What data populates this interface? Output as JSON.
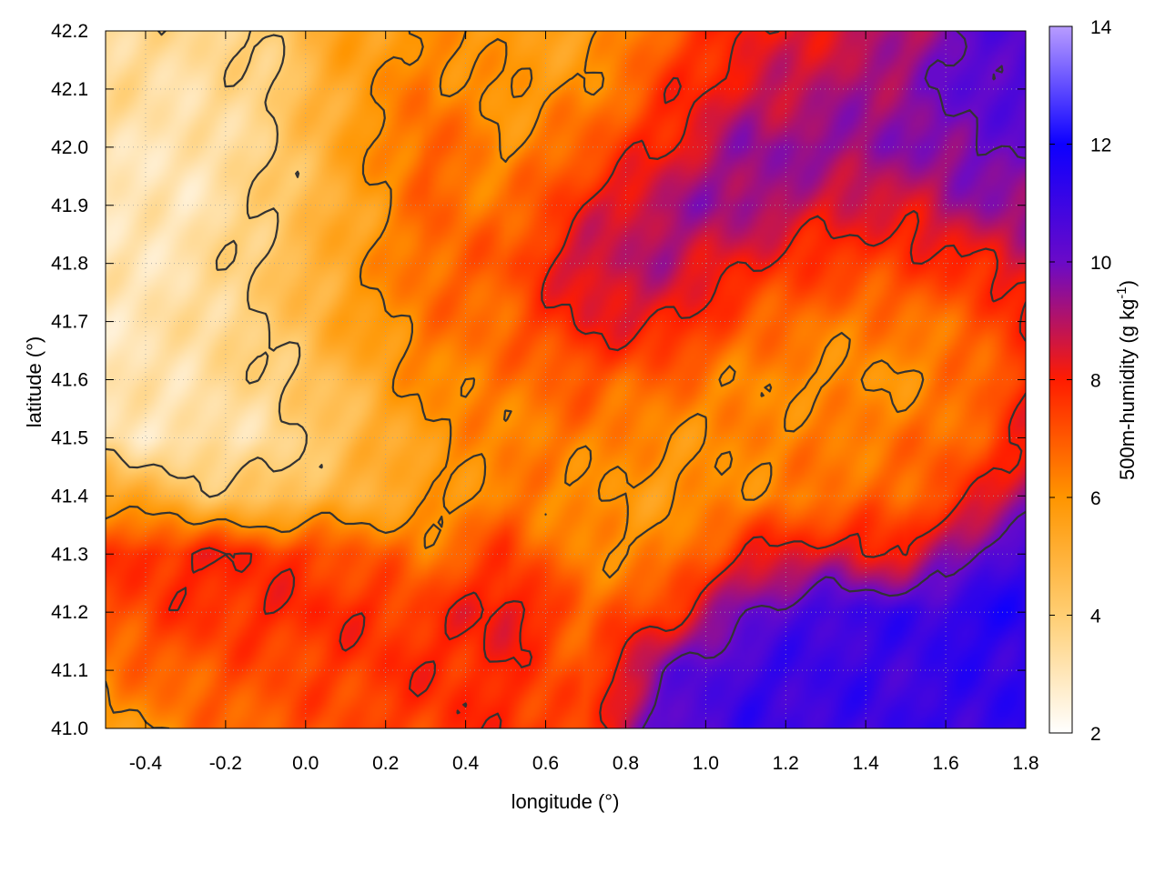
{
  "chart_data": {
    "type": "heatmap",
    "title": "",
    "xlabel": "longitude (°)",
    "ylabel": "latitude (°)",
    "colorbar_label_main": "500m-humidity (g kg",
    "colorbar_label_exp": "-1",
    "colorbar_label_close": ")",
    "xlim": [
      -0.5,
      1.8
    ],
    "ylim": [
      41.0,
      42.2
    ],
    "x_ticks": [
      "-0.4",
      "-0.2",
      "0.0",
      "0.2",
      "0.4",
      "0.6",
      "0.8",
      "1.0",
      "1.2",
      "1.4",
      "1.6",
      "1.8"
    ],
    "x_tick_values": [
      -0.4,
      -0.2,
      0.0,
      0.2,
      0.4,
      0.6,
      0.8,
      1.0,
      1.2,
      1.4,
      1.6,
      1.8
    ],
    "y_ticks": [
      "41.0",
      "41.1",
      "41.2",
      "41.3",
      "41.4",
      "41.5",
      "41.6",
      "41.7",
      "41.8",
      "41.9",
      "42.0",
      "42.1",
      "42.2"
    ],
    "y_tick_values": [
      41.0,
      41.1,
      41.2,
      41.3,
      41.4,
      41.5,
      41.6,
      41.7,
      41.8,
      41.9,
      42.0,
      42.1,
      42.2
    ],
    "colorbar_range": [
      2,
      14
    ],
    "colorbar_ticks": [
      "2",
      "4",
      "6",
      "8",
      "10",
      "12",
      "14"
    ],
    "colorbar_tick_values": [
      2,
      4,
      6,
      8,
      10,
      12,
      14
    ],
    "colorscale": [
      {
        "v": 2,
        "color": "#ffffff"
      },
      {
        "v": 4,
        "color": "#ffce73"
      },
      {
        "v": 6,
        "color": "#ff9500"
      },
      {
        "v": 8,
        "color": "#ff1c00"
      },
      {
        "v": 10,
        "color": "#6a0ac8"
      },
      {
        "v": 12,
        "color": "#0d00ff"
      },
      {
        "v": 14,
        "color": "#b89cff"
      }
    ],
    "grid": true,
    "contour_color": "#333333",
    "field_estimate": {
      "lon_nodes": [
        -0.5,
        -0.3,
        -0.1,
        0.1,
        0.3,
        0.5,
        0.7,
        0.9,
        1.1,
        1.3,
        1.5,
        1.7,
        1.8
      ],
      "lat_nodes": [
        41.0,
        41.1,
        41.2,
        41.3,
        41.4,
        41.5,
        41.6,
        41.7,
        41.8,
        41.9,
        42.0,
        42.1,
        42.2
      ],
      "values": [
        [
          5.5,
          6.5,
          7.0,
          7.2,
          7.5,
          7.8,
          7.2,
          10.5,
          11.0,
          11.0,
          11.0,
          11.2,
          11.2
        ],
        [
          6.5,
          7.0,
          7.2,
          7.5,
          7.8,
          7.8,
          7.0,
          10.0,
          11.0,
          11.0,
          11.0,
          11.2,
          11.2
        ],
        [
          7.2,
          7.6,
          7.8,
          7.8,
          7.5,
          8.5,
          6.8,
          7.5,
          10.0,
          11.0,
          11.0,
          11.5,
          11.5
        ],
        [
          7.5,
          8.0,
          7.8,
          7.2,
          6.5,
          7.5,
          6.2,
          6.2,
          8.0,
          8.5,
          8.0,
          10.5,
          10.8
        ],
        [
          5.8,
          4.5,
          4.2,
          5.0,
          5.5,
          6.5,
          6.0,
          5.8,
          6.2,
          6.5,
          6.8,
          8.0,
          9.5
        ],
        [
          3.2,
          3.0,
          3.4,
          4.5,
          5.8,
          6.3,
          6.5,
          6.0,
          6.2,
          6.5,
          6.5,
          7.0,
          8.0
        ],
        [
          3.0,
          3.3,
          3.8,
          4.8,
          6.2,
          6.5,
          7.0,
          6.8,
          6.2,
          6.0,
          6.0,
          6.8,
          7.8
        ],
        [
          3.0,
          3.3,
          4.0,
          5.5,
          6.5,
          6.8,
          8.2,
          8.2,
          7.0,
          6.5,
          6.5,
          7.0,
          8.0
        ],
        [
          3.0,
          3.2,
          4.2,
          5.5,
          6.8,
          7.0,
          8.8,
          9.0,
          8.0,
          7.5,
          7.5,
          8.0,
          8.5
        ],
        [
          3.0,
          3.0,
          4.0,
          5.2,
          6.8,
          6.5,
          8.0,
          9.2,
          9.5,
          8.5,
          8.5,
          9.5,
          9.5
        ],
        [
          3.2,
          3.0,
          3.8,
          5.5,
          7.0,
          6.0,
          7.0,
          8.0,
          9.5,
          9.5,
          9.5,
          10.0,
          10.0
        ],
        [
          3.5,
          3.3,
          3.8,
          5.5,
          6.5,
          5.8,
          6.0,
          7.5,
          8.5,
          9.0,
          9.5,
          10.5,
          10.5
        ],
        [
          3.6,
          3.5,
          4.0,
          5.5,
          6.0,
          5.8,
          5.5,
          7.0,
          8.0,
          8.5,
          9.0,
          10.5,
          10.5
        ]
      ]
    },
    "contour_levels": [
      4,
      6,
      8,
      10
    ]
  }
}
